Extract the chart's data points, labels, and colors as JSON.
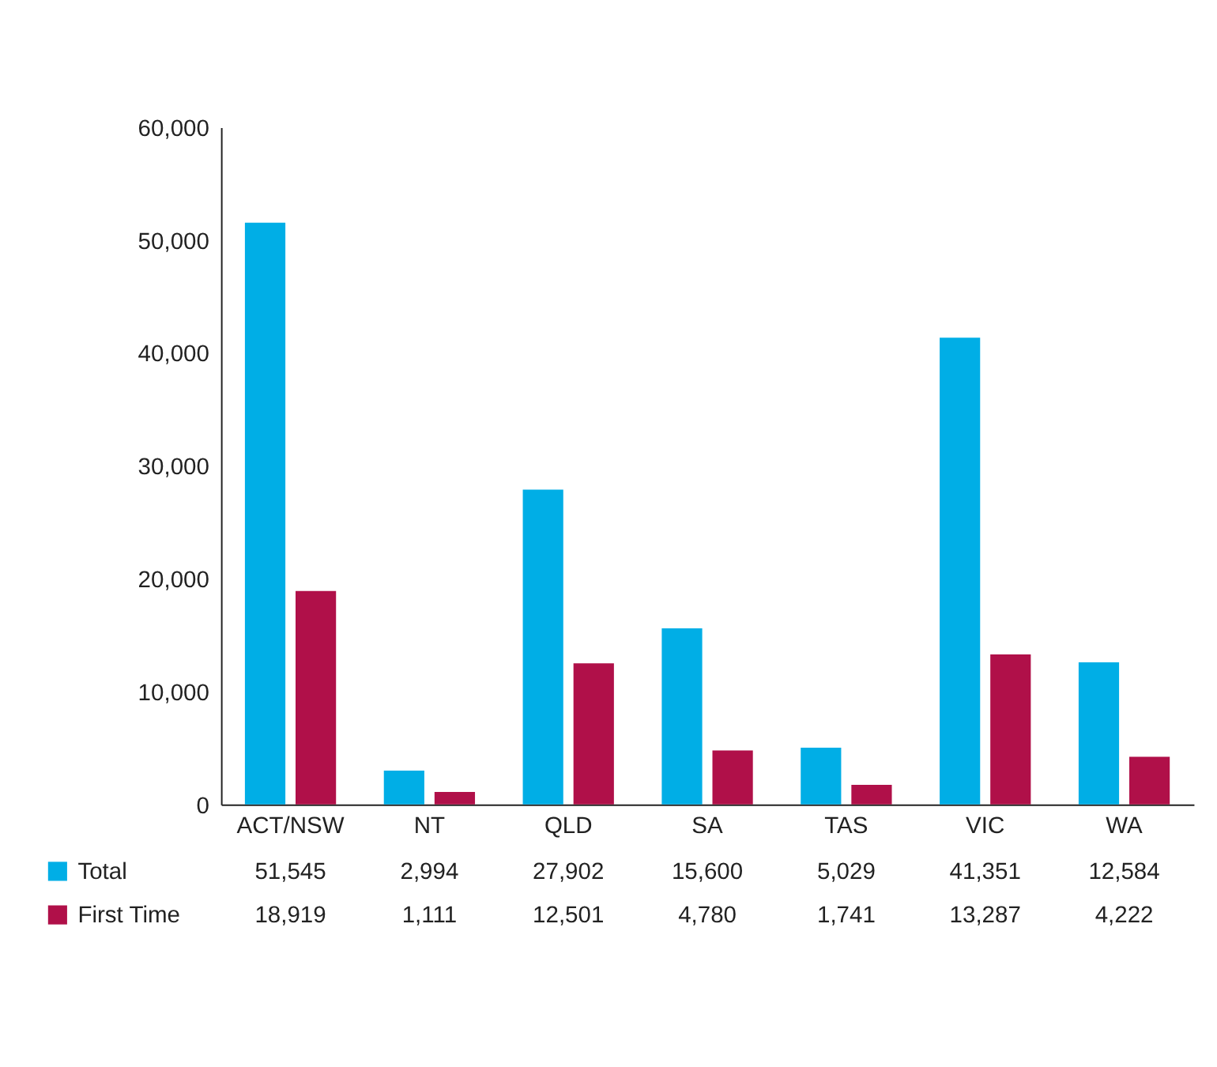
{
  "chart_data": {
    "type": "bar",
    "categories": [
      "ACT/NSW",
      "NT",
      "QLD",
      "SA",
      "TAS",
      "VIC",
      "WA"
    ],
    "series": [
      {
        "name": "Total",
        "color": "#00aee6",
        "values": [
          51545,
          2994,
          27902,
          15600,
          5029,
          41351,
          12584
        ],
        "value_labels": [
          "51,545",
          "2,994",
          "27,902",
          "15,600",
          "5,029",
          "41,351",
          "12,584"
        ]
      },
      {
        "name": "First Time",
        "color": "#b01049",
        "values": [
          18919,
          1111,
          12501,
          4780,
          1741,
          13287,
          4222
        ],
        "value_labels": [
          "18,919",
          "1,111",
          "12,501",
          "4,780",
          "1,741",
          "13,287",
          "4,222"
        ]
      }
    ],
    "ylim": [
      0,
      60000
    ],
    "yticks": [
      0,
      {
        "value": 10000,
        "label": "10,000"
      },
      {
        "value": 20000,
        "label": "20,000"
      },
      {
        "value": 30000,
        "label": "30,000"
      },
      {
        "value": 40000,
        "label": "40,000"
      },
      {
        "value": 50000,
        "label": "50,000"
      },
      {
        "value": 60000,
        "label": "60,000"
      }
    ],
    "grid": false,
    "legend": "bottom left"
  }
}
